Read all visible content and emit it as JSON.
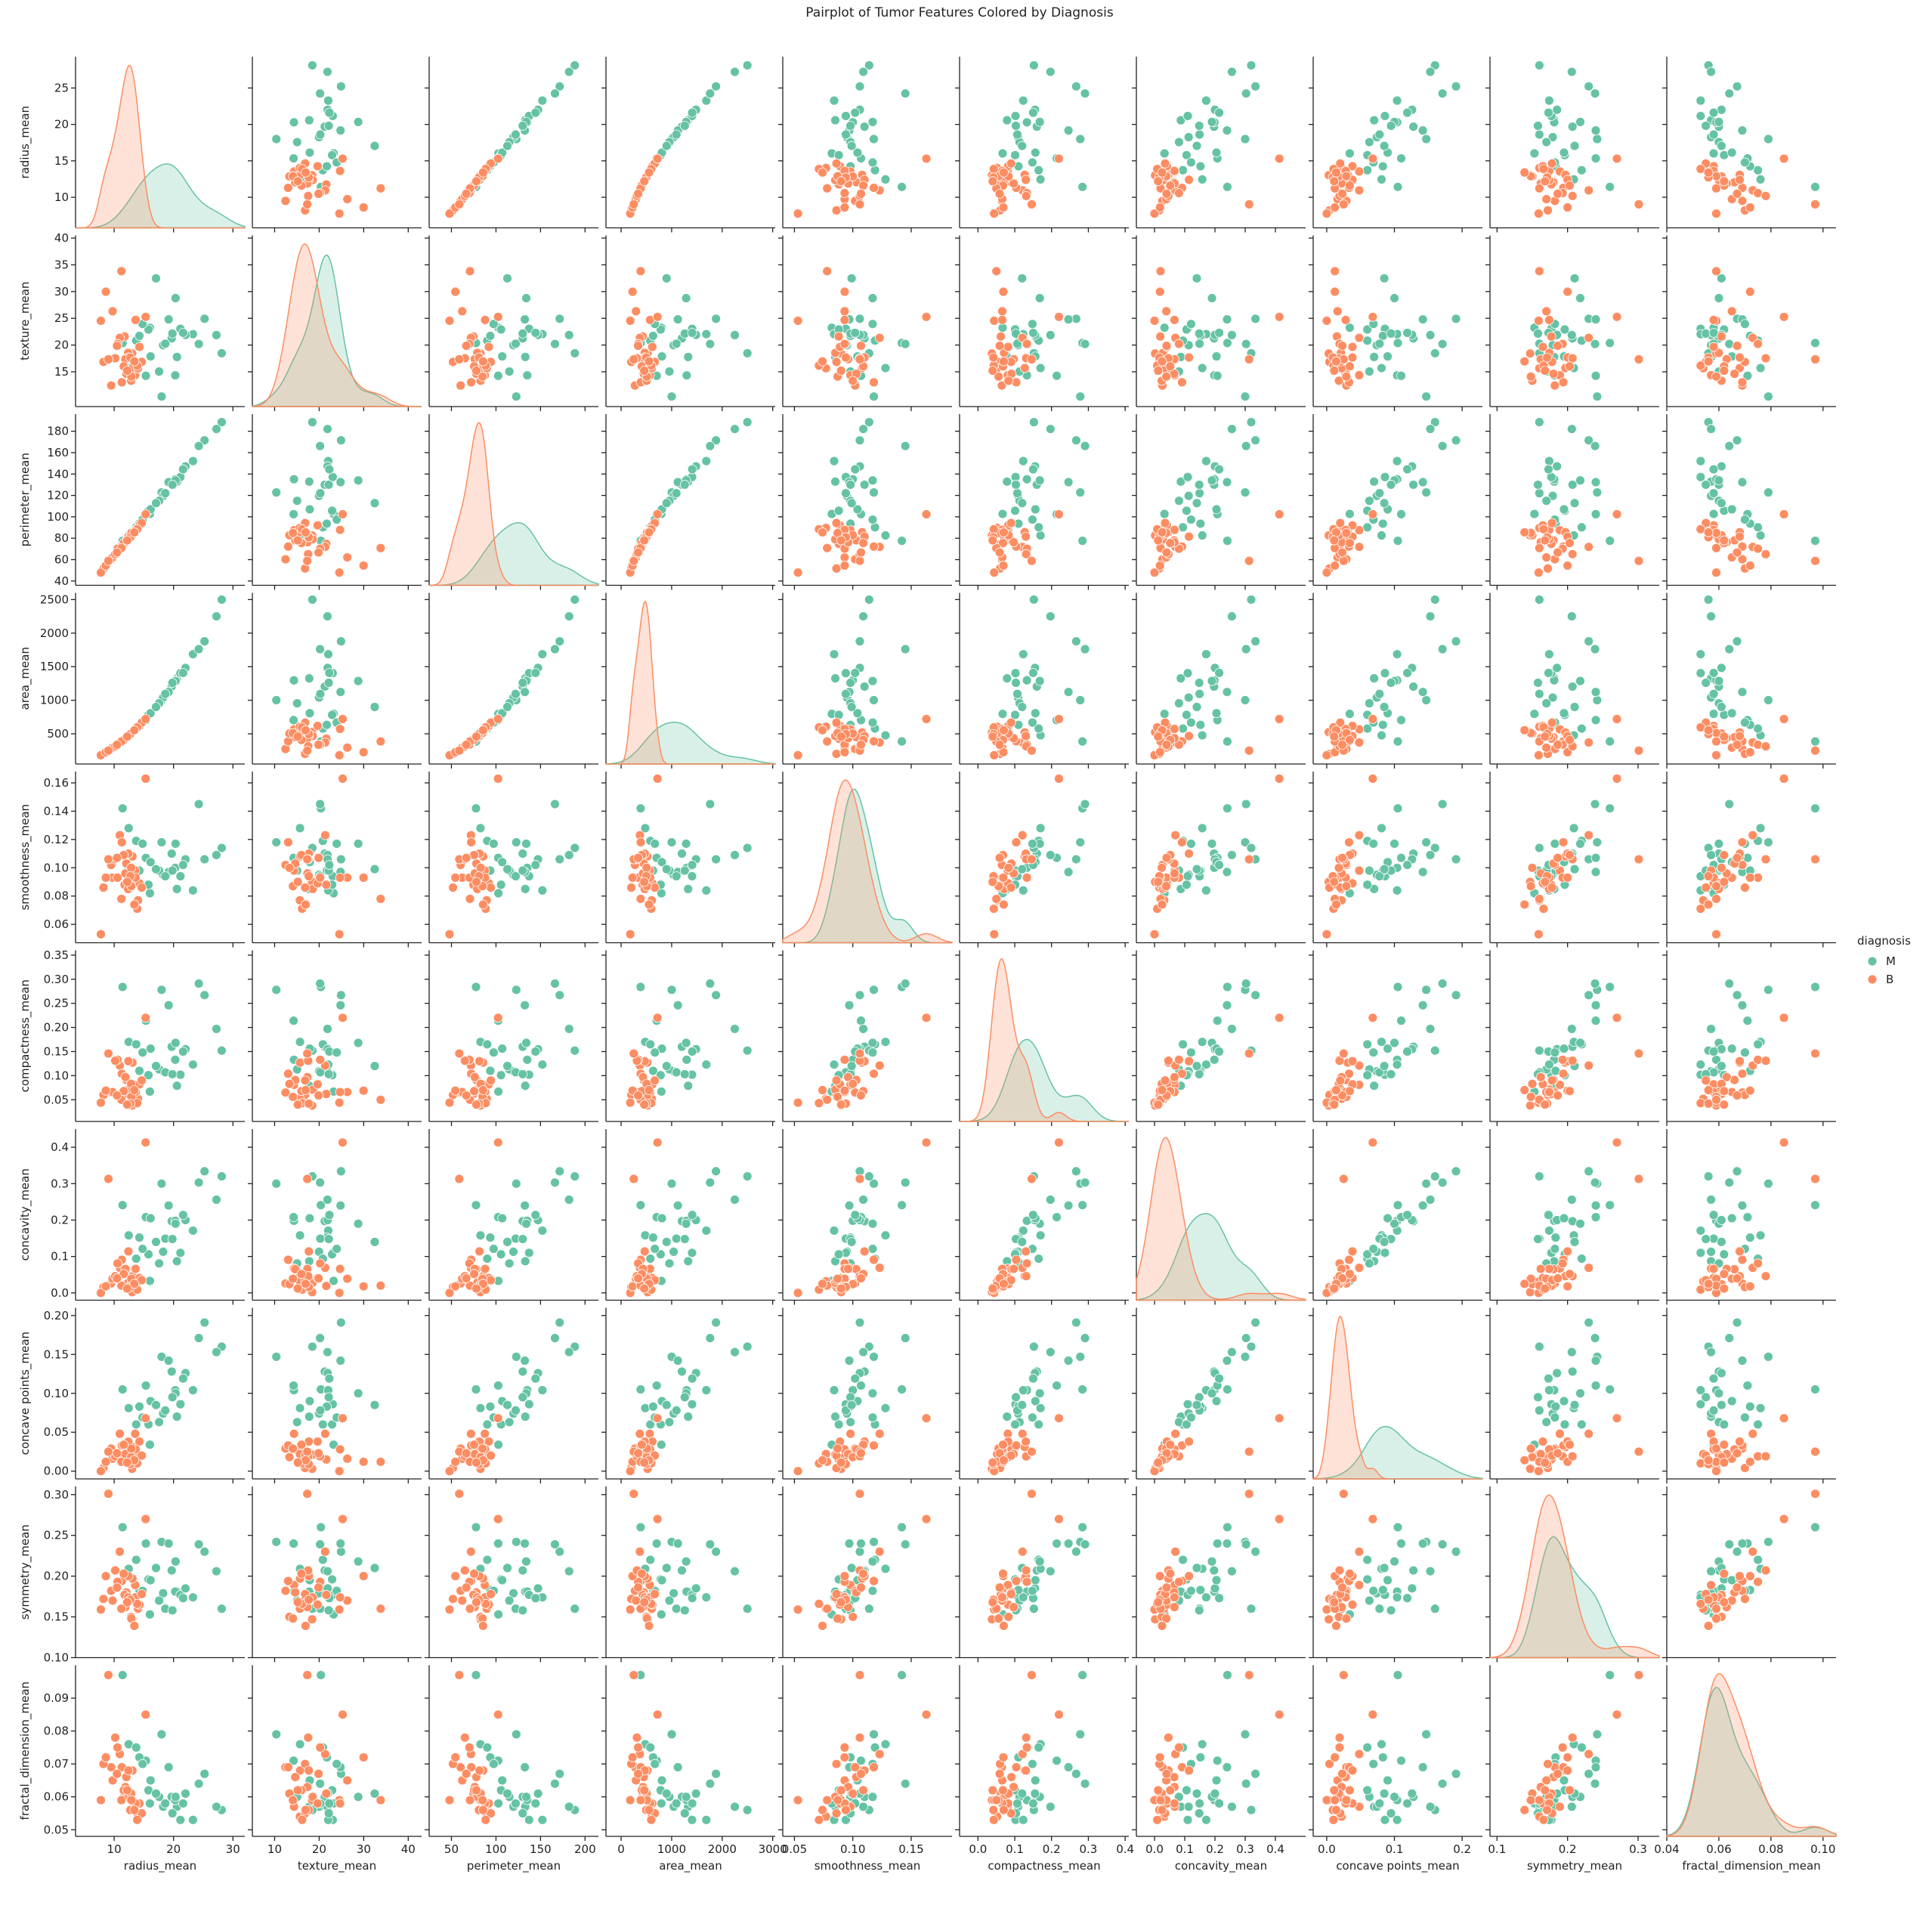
{
  "chart_data": {
    "type": "pairplot",
    "title": "Pairplot of Tumor Features Colored by Diagnosis",
    "legend_title": "diagnosis",
    "legend_position": "right",
    "hue": [
      {
        "name": "M",
        "color": "#66c2a5"
      },
      {
        "name": "B",
        "color": "#fc8d62"
      }
    ],
    "variables": [
      {
        "name": "radius_mean",
        "xlim": [
          3.5,
          32
        ],
        "xticks": [
          10,
          20,
          30
        ],
        "ylim": [
          5.8,
          29.3
        ],
        "yticks": [
          10,
          15,
          20,
          25
        ]
      },
      {
        "name": "texture_mean",
        "xlim": [
          5,
          43
        ],
        "xticks": [
          10,
          20,
          30,
          40
        ],
        "ylim": [
          8.5,
          40.5
        ],
        "yticks": [
          15,
          20,
          25,
          30,
          35,
          40
        ]
      },
      {
        "name": "perimeter_mean",
        "xlim": [
          25,
          215
        ],
        "xticks": [
          50,
          100,
          150,
          200
        ],
        "ylim": [
          36,
          196
        ],
        "yticks": [
          40,
          60,
          80,
          100,
          120,
          140,
          160,
          180
        ]
      },
      {
        "name": "area_mean",
        "xlim": [
          -300,
          3050
        ],
        "xticks": [
          0,
          1000,
          2000,
          3000
        ],
        "ylim": [
          50,
          2600
        ],
        "yticks": [
          500,
          1000,
          1500,
          2000,
          2500
        ]
      },
      {
        "name": "smoothness_mean",
        "xlim": [
          0.04,
          0.185
        ],
        "xticks": [
          0.05,
          {
            "value": 0.1,
            "label": "0.10"
          },
          0.15
        ],
        "ylim": [
          0.047,
          0.168
        ],
        "yticks": [
          0.06,
          0.08,
          {
            "value": 0.1,
            "label": "0.10"
          },
          0.12,
          0.14,
          0.16
        ]
      },
      {
        "name": "compactness_mean",
        "xlim": [
          -0.05,
          0.41
        ],
        "xticks": [
          {
            "value": 0,
            "label": "0.0"
          },
          0.1,
          0.2,
          0.3,
          0.4
        ],
        "ylim": [
          0.005,
          0.36
        ],
        "yticks": [
          0.05,
          {
            "value": 0.1,
            "label": "0.10"
          },
          0.15,
          {
            "value": 0.2,
            "label": "0.20"
          },
          0.25,
          {
            "value": 0.3,
            "label": "0.30"
          },
          0.35
        ]
      },
      {
        "name": "concavity_mean",
        "xlim": [
          -0.06,
          0.5
        ],
        "xticks": [
          {
            "value": 0,
            "label": "0.0"
          },
          0.1,
          0.2,
          0.3,
          0.4
        ],
        "ylim": [
          -0.02,
          0.45
        ],
        "yticks": [
          {
            "value": 0,
            "label": "0.0"
          },
          0.1,
          0.2,
          0.3,
          0.4
        ]
      },
      {
        "name": "concave points_mean",
        "xlim": [
          -0.02,
          0.23
        ],
        "xticks": [
          {
            "value": 0,
            "label": "0.0"
          },
          0.1,
          0.2
        ],
        "ylim": [
          -0.01,
          0.21
        ],
        "yticks": [
          {
            "value": 0,
            "label": "0.00"
          },
          0.05,
          {
            "value": 0.1,
            "label": "0.10"
          },
          0.15,
          {
            "value": 0.2,
            "label": "0.20"
          }
        ]
      },
      {
        "name": "symmetry_mean",
        "xlim": [
          0.09,
          0.33
        ],
        "xticks": [
          0.1,
          0.2,
          0.3
        ],
        "ylim": [
          0.1,
          0.31
        ],
        "yticks": [
          {
            "value": 0.1,
            "label": "0.10"
          },
          0.15,
          {
            "value": 0.2,
            "label": "0.20"
          },
          0.25,
          {
            "value": 0.3,
            "label": "0.30"
          }
        ]
      },
      {
        "name": "fractal_dimension_mean",
        "xlim": [
          0.04,
          0.105
        ],
        "xticks": [
          0.04,
          0.06,
          0.08,
          {
            "value": 0.1,
            "label": "0.10"
          }
        ],
        "ylim": [
          0.048,
          0.1
        ],
        "yticks": [
          0.05,
          0.06,
          0.07,
          0.08,
          0.09
        ]
      }
    ],
    "diagnosis": [
      "M",
      "M",
      "M",
      "M",
      "M",
      "M",
      "M",
      "M",
      "M",
      "M",
      "M",
      "M",
      "M",
      "M",
      "M",
      "M",
      "M",
      "M",
      "M",
      "M",
      "M",
      "M",
      "M",
      "M",
      "M",
      "M",
      "M",
      "M",
      "B",
      "B",
      "B",
      "B",
      "B",
      "B",
      "B",
      "B",
      "B",
      "B",
      "B",
      "B",
      "B",
      "B",
      "B",
      "B",
      "B",
      "B",
      "B",
      "B",
      "B",
      "B",
      "B",
      "B",
      "B",
      "B",
      "B",
      "B",
      "B",
      "B",
      "B",
      "B"
    ],
    "rows": [
      [
        17.99,
        10.38,
        122.8,
        1001,
        0.118,
        0.278,
        0.3,
        0.147,
        0.242,
        0.079
      ],
      [
        20.57,
        17.77,
        132.9,
        1326,
        0.085,
        0.079,
        0.087,
        0.07,
        0.181,
        0.057
      ],
      [
        19.69,
        21.25,
        130.0,
        1203,
        0.11,
        0.16,
        0.197,
        0.128,
        0.207,
        0.06
      ],
      [
        11.42,
        20.38,
        77.6,
        386,
        0.142,
        0.284,
        0.241,
        0.105,
        0.26,
        0.097
      ],
      [
        20.29,
        14.34,
        135.1,
        1297,
        0.1,
        0.133,
        0.198,
        0.104,
        0.181,
        0.059
      ],
      [
        12.45,
        15.7,
        82.6,
        477,
        0.128,
        0.17,
        0.158,
        0.081,
        0.209,
        0.076
      ],
      [
        18.25,
        19.98,
        119.6,
        1040,
        0.095,
        0.109,
        0.113,
        0.074,
        0.179,
        0.057
      ],
      [
        13.71,
        20.83,
        90.2,
        578,
        0.119,
        0.165,
        0.094,
        0.06,
        0.22,
        0.075
      ],
      [
        25.22,
        24.91,
        171.5,
        1878,
        0.106,
        0.267,
        0.334,
        0.191,
        0.23,
        0.067
      ],
      [
        16.02,
        23.24,
        102.7,
        797,
        0.082,
        0.067,
        0.033,
        0.034,
        0.153,
        0.058
      ],
      [
        28.11,
        18.47,
        188.5,
        2499,
        0.114,
        0.152,
        0.32,
        0.16,
        0.16,
        0.056
      ],
      [
        15.34,
        14.26,
        102.5,
        704,
        0.107,
        0.214,
        0.208,
        0.11,
        0.24,
        0.071
      ],
      [
        21.16,
        23.04,
        137.2,
        1404,
        0.094,
        0.102,
        0.11,
        0.086,
        0.177,
        0.053
      ],
      [
        17.57,
        15.05,
        115.0,
        955,
        0.098,
        0.113,
        0.081,
        0.063,
        0.17,
        0.06
      ],
      [
        19.17,
        24.8,
        132.4,
        1123,
        0.097,
        0.246,
        0.24,
        0.142,
        0.24,
        0.069
      ],
      [
        23.27,
        22.04,
        152.1,
        1686,
        0.084,
        0.123,
        0.171,
        0.104,
        0.174,
        0.053
      ],
      [
        14.25,
        21.72,
        93.6,
        633,
        0.098,
        0.11,
        0.152,
        0.083,
        0.183,
        0.072
      ],
      [
        27.22,
        21.87,
        182.1,
        2250,
        0.109,
        0.197,
        0.256,
        0.153,
        0.206,
        0.057
      ],
      [
        18.61,
        20.25,
        122.1,
        1094,
        0.094,
        0.107,
        0.149,
        0.078,
        0.16,
        0.058
      ],
      [
        15.78,
        22.91,
        105.7,
        782,
        0.088,
        0.101,
        0.106,
        0.06,
        0.196,
        0.062
      ],
      [
        20.34,
        28.77,
        134.0,
        1287,
        0.117,
        0.168,
        0.19,
        0.1,
        0.218,
        0.06
      ],
      [
        22.01,
        21.9,
        147.2,
        1482,
        0.106,
        0.155,
        0.2,
        0.126,
        0.185,
        0.061
      ],
      [
        16.13,
        17.88,
        107.0,
        807,
        0.104,
        0.156,
        0.205,
        0.09,
        0.195,
        0.065
      ],
      [
        19.81,
        22.15,
        130.0,
        1260,
        0.098,
        0.103,
        0.148,
        0.095,
        0.158,
        0.055
      ],
      [
        24.25,
        20.2,
        166.2,
        1761,
        0.145,
        0.291,
        0.303,
        0.171,
        0.239,
        0.064
      ],
      [
        17.05,
        32.47,
        112.8,
        900,
        0.099,
        0.12,
        0.14,
        0.085,
        0.21,
        0.061
      ],
      [
        21.61,
        22.28,
        144.4,
        1407,
        0.102,
        0.15,
        0.214,
        0.119,
        0.173,
        0.058
      ],
      [
        14.78,
        23.94,
        97.4,
        668,
        0.117,
        0.148,
        0.121,
        0.069,
        0.182,
        0.07
      ],
      [
        13.54,
        14.36,
        87.5,
        567,
        0.098,
        0.081,
        0.067,
        0.048,
        0.189,
        0.057
      ],
      [
        13.08,
        15.71,
        85.6,
        520,
        0.108,
        0.127,
        0.046,
        0.031,
        0.197,
        0.068
      ],
      [
        9.5,
        12.44,
        60.3,
        274,
        0.102,
        0.065,
        0.026,
        0.029,
        0.182,
        0.069
      ],
      [
        13.03,
        18.42,
        82.6,
        524,
        0.09,
        0.038,
        0.002,
        0.003,
        0.147,
        0.059
      ],
      [
        8.2,
        16.84,
        51.7,
        201,
        0.086,
        0.06,
        0.016,
        0.004,
        0.172,
        0.07
      ],
      [
        12.05,
        14.63,
        78.0,
        449,
        0.103,
        0.091,
        0.065,
        0.028,
        0.18,
        0.066
      ],
      [
        11.76,
        21.6,
        74.7,
        428,
        0.088,
        0.062,
        0.019,
        0.015,
        0.177,
        0.061
      ],
      [
        14.02,
        15.66,
        89.6,
        606,
        0.077,
        0.052,
        0.032,
        0.022,
        0.16,
        0.054
      ],
      [
        10.95,
        21.35,
        71.9,
        371,
        0.123,
        0.121,
        0.069,
        0.048,
        0.23,
        0.073
      ],
      [
        12.36,
        18.54,
        79.0,
        467,
        0.085,
        0.071,
        0.028,
        0.021,
        0.174,
        0.06
      ],
      [
        7.76,
        24.54,
        47.9,
        181,
        0.053,
        0.044,
        0.0,
        0.0,
        0.159,
        0.059
      ],
      [
        14.26,
        19.65,
        92.0,
        618,
        0.089,
        0.082,
        0.041,
        0.038,
        0.165,
        0.058
      ],
      [
        11.29,
        13.04,
        72.2,
        388,
        0.118,
        0.104,
        0.091,
        0.033,
        0.194,
        0.069
      ],
      [
        9.74,
        26.32,
        62.1,
        294,
        0.093,
        0.066,
        0.039,
        0.016,
        0.17,
        0.065
      ],
      [
        12.4,
        17.68,
        81.5,
        467,
        0.11,
        0.13,
        0.114,
        0.038,
        0.2,
        0.068
      ],
      [
        10.57,
        20.22,
        70.2,
        338,
        0.093,
        0.133,
        0.081,
        0.019,
        0.193,
        0.075
      ],
      [
        13.61,
        24.69,
        87.8,
        573,
        0.093,
        0.066,
        0.066,
        0.028,
        0.174,
        0.058
      ],
      [
        11.89,
        17.36,
        76.2,
        434,
        0.096,
        0.097,
        0.066,
        0.022,
        0.162,
        0.063
      ],
      [
        8.6,
        29.97,
        54.4,
        226,
        0.093,
        0.069,
        0.018,
        0.012,
        0.2,
        0.072
      ],
      [
        12.86,
        13.32,
        82.8,
        505,
        0.1,
        0.083,
        0.024,
        0.018,
        0.15,
        0.061
      ],
      [
        14.64,
        16.85,
        94.2,
        666,
        0.086,
        0.09,
        0.035,
        0.02,
        0.178,
        0.055
      ],
      [
        10.18,
        17.53,
        65.1,
        313,
        0.106,
        0.131,
        0.046,
        0.019,
        0.207,
        0.078
      ],
      [
        12.89,
        14.11,
        84.9,
        511,
        0.087,
        0.056,
        0.039,
        0.029,
        0.148,
        0.059
      ],
      [
        11.61,
        16.02,
        75.5,
        409,
        0.109,
        0.068,
        0.052,
        0.034,
        0.203,
        0.062
      ],
      [
        13.88,
        16.16,
        88.4,
        596,
        0.071,
        0.043,
        0.009,
        0.01,
        0.166,
        0.053
      ],
      [
        9.03,
        17.33,
        58.8,
        250,
        0.106,
        0.146,
        0.313,
        0.025,
        0.301,
        0.097
      ],
      [
        12.72,
        17.67,
        80.9,
        496,
        0.094,
        0.042,
        0.016,
        0.009,
        0.171,
        0.056
      ],
      [
        11.22,
        33.81,
        70.8,
        386,
        0.078,
        0.05,
        0.02,
        0.012,
        0.16,
        0.059
      ],
      [
        15.3,
        25.27,
        102.4,
        720,
        0.163,
        0.22,
        0.413,
        0.068,
        0.27,
        0.085
      ],
      [
        10.48,
        19.86,
        66.7,
        337,
        0.107,
        0.059,
        0.04,
        0.023,
        0.186,
        0.067
      ],
      [
        13.4,
        16.95,
        85.5,
        553,
        0.074,
        0.07,
        0.025,
        0.014,
        0.139,
        0.056
      ],
      [
        12.2,
        15.21,
        78.0,
        458,
        0.09,
        0.04,
        0.012,
        0.011,
        0.168,
        0.062
      ]
    ]
  }
}
